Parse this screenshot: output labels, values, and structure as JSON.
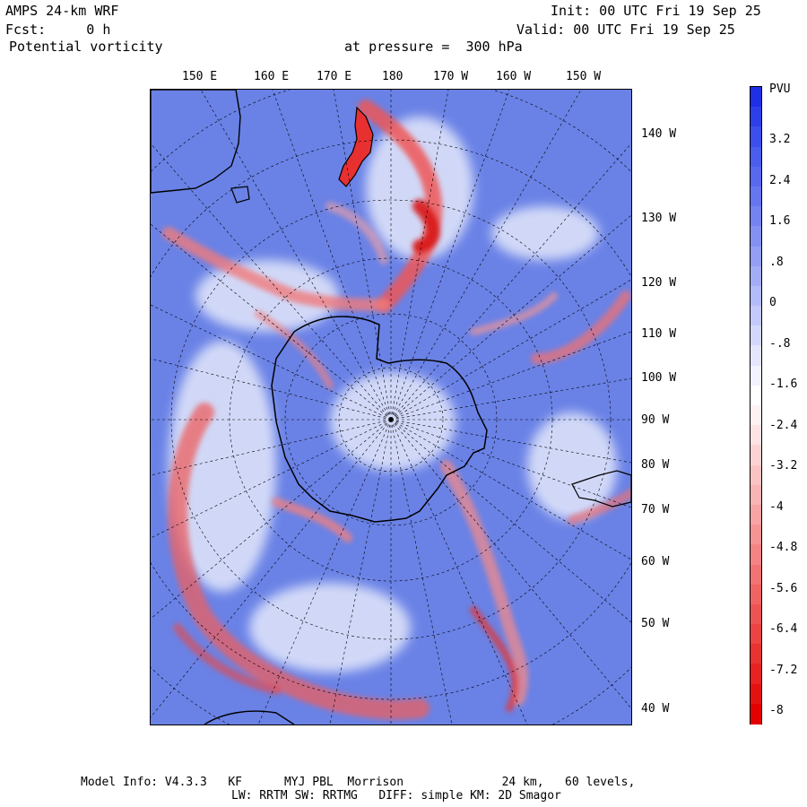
{
  "header": {
    "model": "AMPS 24-km WRF",
    "init": "Init: 00 UTC Fri 19 Sep 25",
    "forecast": "Fcst:     0 h",
    "valid": "Valid: 00 UTC Fri 19 Sep 25",
    "field": "Potential vorticity",
    "pressure": "at pressure =  300 hPa"
  },
  "map": {
    "top_longitudes": [
      "150 E",
      "160 E",
      "170 E",
      "180",
      "170 W",
      "160 W",
      "150 W"
    ],
    "right_longitudes": [
      "140 W",
      "130 W",
      "120 W",
      "110 W",
      "100 W",
      "90 W",
      "80 W",
      "70 W",
      "60 W",
      "50 W",
      "40 W"
    ]
  },
  "colorbar": {
    "unit": "PVU",
    "labels": [
      "3.2",
      "2.4",
      "1.6",
      ".8",
      "0",
      "-.8",
      "-1.6",
      "-2.4",
      "-3.2",
      "-4",
      "-4.8",
      "-5.6",
      "-6.4",
      "-7.2",
      "-8"
    ],
    "colors": [
      "#1f2fe6",
      "#2d3fe8",
      "#3c4fea",
      "#4a5dec",
      "#5869ee",
      "#6676f0",
      "#7583f1",
      "#8491f3",
      "#939ef5",
      "#a3acf6",
      "#b3bbf8",
      "#c3c9fa",
      "#d3d8fb",
      "#e3e6fd",
      "#f2f3fe",
      "#ffffff",
      "#fef2f2",
      "#fde3e3",
      "#fcd3d3",
      "#fbc4c4",
      "#f9b4b4",
      "#f8a4a4",
      "#f69494",
      "#f48484",
      "#f27373",
      "#f06363",
      "#ee5353",
      "#ec4343",
      "#e93232",
      "#e72222",
      "#e41111",
      "#e20000"
    ]
  },
  "footer": {
    "line1": "Model Info: V4.3.3   KF      MYJ PBL  Morrison              24 km,   60 levels,",
    "line2": "LW: RRTM SW: RRTMG   DIFF: simple KM: 2D Smagor"
  }
}
